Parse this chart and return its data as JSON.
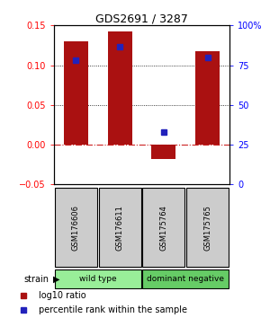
{
  "title": "GDS2691 / 3287",
  "samples": [
    "GSM176606",
    "GSM176611",
    "GSM175764",
    "GSM175765"
  ],
  "log10_ratio": [
    0.13,
    0.143,
    -0.018,
    0.118
  ],
  "percentile_rank": [
    78,
    86.5,
    33,
    80
  ],
  "groups": [
    {
      "label": "wild type",
      "indices": [
        0,
        1
      ],
      "color": "#99EE99"
    },
    {
      "label": "dominant negative",
      "indices": [
        2,
        3
      ],
      "color": "#66CC66"
    }
  ],
  "ylim_left": [
    -0.05,
    0.15
  ],
  "ylim_right": [
    0,
    100
  ],
  "yticks_left": [
    -0.05,
    0,
    0.05,
    0.1,
    0.15
  ],
  "yticks_right": [
    0,
    25,
    50,
    75,
    100
  ],
  "bar_color": "#AA1111",
  "dot_color": "#2222BB",
  "hline_color": "#CC2222",
  "bar_width": 0.55,
  "strain_label": "strain",
  "legend_items": [
    {
      "color": "#AA1111",
      "label": "log10 ratio"
    },
    {
      "color": "#2222BB",
      "label": "percentile rank within the sample"
    }
  ]
}
